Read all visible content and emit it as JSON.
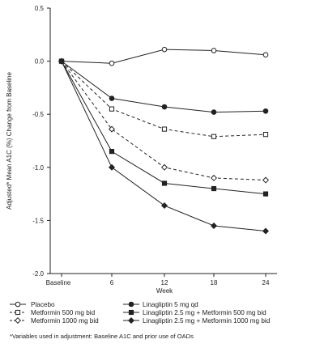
{
  "chart_data": {
    "type": "line",
    "ylabel": "Adjusted* Mean A1C (%) Change from Baseline",
    "xlabel": "Week",
    "x": [
      "Baseline",
      "6",
      "12",
      "18",
      "24"
    ],
    "ylim": [
      -2.0,
      0.5
    ],
    "yticks": [
      "0.5",
      "0.0",
      "-0.5",
      "-1.0",
      "-1.5",
      "-2.0"
    ],
    "grid": false,
    "legend_position": "bottom",
    "series": [
      {
        "name": "Placebo",
        "values": [
          0.0,
          -0.02,
          0.11,
          0.1,
          0.06
        ],
        "marker": "circle-open",
        "dash": "solid"
      },
      {
        "name": "Metformin 500 mg bid",
        "values": [
          0.0,
          -0.45,
          -0.64,
          -0.71,
          -0.69
        ],
        "marker": "square-open",
        "dash": "dashed"
      },
      {
        "name": "Metformin 1000 mg bid",
        "values": [
          0.0,
          -0.64,
          -1.0,
          -1.1,
          -1.12
        ],
        "marker": "diamond-open",
        "dash": "dashed"
      },
      {
        "name": "Linagliptin 5 mg qd",
        "values": [
          0.0,
          -0.35,
          -0.43,
          -0.48,
          -0.47
        ],
        "marker": "circle-filled",
        "dash": "solid"
      },
      {
        "name": "Linagliptin 2.5 mg + Metformin 500 mg bid",
        "values": [
          0.0,
          -0.85,
          -1.15,
          -1.2,
          -1.25
        ],
        "marker": "square-filled",
        "dash": "solid"
      },
      {
        "name": "Linagliptin 2.5 mg + Metformin 1000 mg bid",
        "values": [
          0.0,
          -1.0,
          -1.36,
          -1.55,
          -1.6
        ],
        "marker": "diamond-filled",
        "dash": "solid"
      }
    ]
  },
  "footnote": "*Variables used in adjustment: Baseline A1C and prior use of OADs",
  "colors": {
    "ink": "#222222",
    "background": "#ffffff"
  }
}
